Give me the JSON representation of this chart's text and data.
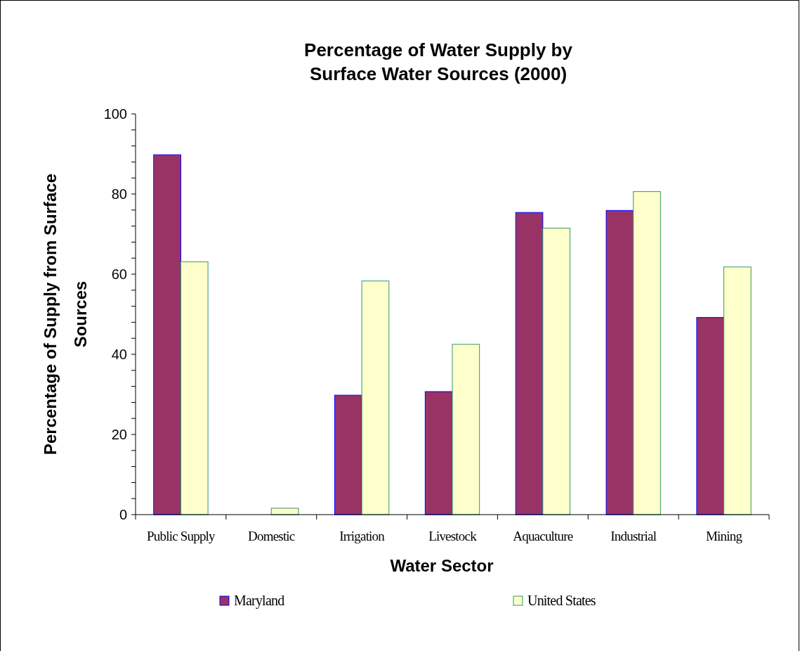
{
  "chart_data": {
    "type": "bar",
    "title": "Percentage of Water Supply by\nSurface Water Sources (2000)",
    "xlabel": "Water Sector",
    "ylabel": "Percentage of Supply from Surface\nSources",
    "categories": [
      "Public Supply",
      "Domestic",
      "Irrigation",
      "Livestock",
      "Aquaculture",
      "Industrial",
      "Mining"
    ],
    "series": [
      {
        "name": "Maryland",
        "color": "#993366",
        "values": [
          89.8,
          0,
          29.8,
          30.7,
          75.4,
          75.9,
          49.2
        ]
      },
      {
        "name": "United States",
        "color": "#ffffcc",
        "values": [
          63.1,
          1.6,
          58.3,
          42.5,
          71.5,
          80.6,
          61.8
        ]
      }
    ],
    "ylim": [
      0,
      100
    ],
    "yticks": [
      0,
      {
        "value": 4,
        "label": null
      },
      {
        "value": 8,
        "label": null
      },
      {
        "value": 12,
        "label": null
      },
      {
        "value": 16,
        "label": null
      },
      20,
      {
        "value": 24,
        "label": null
      },
      {
        "value": 28,
        "label": null
      },
      {
        "value": 32,
        "label": null
      },
      {
        "value": 36,
        "label": null
      },
      40,
      {
        "value": 44,
        "label": null
      },
      {
        "value": 48,
        "label": null
      },
      {
        "value": 52,
        "label": null
      },
      {
        "value": 56,
        "label": null
      },
      60,
      {
        "value": 64,
        "label": null
      },
      {
        "value": 68,
        "label": null
      },
      {
        "value": 72,
        "label": null
      },
      {
        "value": 76,
        "label": null
      },
      80,
      {
        "value": 84,
        "label": null
      },
      {
        "value": 88,
        "label": null
      },
      {
        "value": 92,
        "label": null
      },
      {
        "value": 96,
        "label": null
      },
      100
    ],
    "grid": false,
    "legend": "bottom"
  }
}
